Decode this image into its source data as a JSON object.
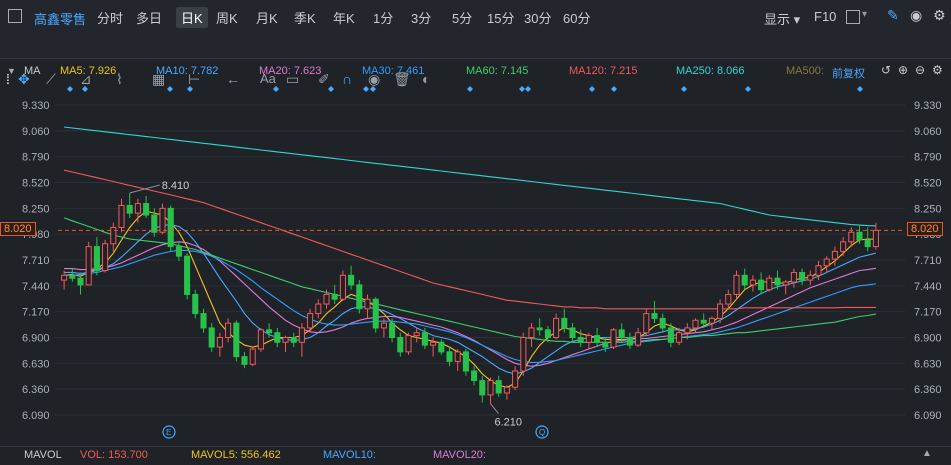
{
  "header": {
    "stock_name": "高鑫零售",
    "periods": [
      "分时",
      "多日",
      "日K",
      "周K",
      "月K",
      "季K",
      "年K",
      "1分",
      "3分",
      "5分",
      "15分",
      "30分",
      "60分"
    ],
    "active_period": "日K",
    "display_label": "显示",
    "f10_label": "F10",
    "toolbar_text_label": "Aa"
  },
  "ma_bar": {
    "title": "MA",
    "items": [
      {
        "label": "MA5: 7.926",
        "color": "#f0c419"
      },
      {
        "label": "MA10: 7.782",
        "color": "#4aa8ff"
      },
      {
        "label": "MA20: 7.623",
        "color": "#e07ad8"
      },
      {
        "label": "MA30: 7.461",
        "color": "#2f9dff"
      },
      {
        "label": "MA60: 7.145",
        "color": "#3ecf6a"
      },
      {
        "label": "MA120: 7.215",
        "color": "#f25a5a"
      },
      {
        "label": "MA250: 8.066",
        "color": "#33d6d6"
      },
      {
        "label": "MA500:",
        "color": "#8a7a3a"
      }
    ],
    "adjust_label": "前复权"
  },
  "chart_data": {
    "type": "candlestick",
    "y_ticks": [
      "9.330",
      "9.060",
      "8.790",
      "8.520",
      "8.250",
      "7.980",
      "7.710",
      "7.440",
      "7.170",
      "6.900",
      "6.630",
      "6.360",
      "6.090"
    ],
    "ylim": [
      6.0,
      9.4
    ],
    "current_price": "8.020",
    "high_annotation": "8.410",
    "low_annotation": "6.210",
    "candles": [
      [
        7.5,
        7.6,
        7.4,
        7.55
      ],
      [
        7.55,
        7.62,
        7.48,
        7.52
      ],
      [
        7.52,
        7.58,
        7.35,
        7.45
      ],
      [
        7.45,
        7.9,
        7.45,
        7.85
      ],
      [
        7.85,
        7.95,
        7.55,
        7.6
      ],
      [
        7.6,
        7.92,
        7.58,
        7.88
      ],
      [
        7.88,
        8.1,
        7.8,
        8.05
      ],
      [
        8.05,
        8.35,
        8.0,
        8.28
      ],
      [
        8.28,
        8.41,
        8.15,
        8.2
      ],
      [
        8.2,
        8.35,
        8.1,
        8.3
      ],
      [
        8.3,
        8.38,
        8.15,
        8.18
      ],
      [
        8.18,
        8.25,
        7.95,
        8.0
      ],
      [
        8.0,
        8.3,
        7.98,
        8.25
      ],
      [
        8.25,
        8.28,
        7.8,
        7.85
      ],
      [
        7.85,
        7.9,
        7.7,
        7.75
      ],
      [
        7.75,
        7.78,
        7.3,
        7.35
      ],
      [
        7.35,
        7.4,
        7.1,
        7.15
      ],
      [
        7.15,
        7.2,
        6.95,
        7.0
      ],
      [
        7.0,
        7.05,
        6.75,
        6.8
      ],
      [
        6.8,
        6.95,
        6.7,
        6.9
      ],
      [
        6.9,
        7.1,
        6.85,
        7.05
      ],
      [
        7.05,
        7.08,
        6.65,
        6.7
      ],
      [
        6.7,
        6.75,
        6.58,
        6.62
      ],
      [
        6.62,
        6.8,
        6.6,
        6.78
      ],
      [
        6.78,
        7.0,
        6.75,
        6.98
      ],
      [
        6.98,
        7.05,
        6.9,
        6.95
      ],
      [
        6.95,
        7.0,
        6.8,
        6.85
      ],
      [
        6.85,
        6.92,
        6.75,
        6.9
      ],
      [
        6.9,
        6.95,
        6.8,
        6.85
      ],
      [
        6.85,
        7.05,
        6.7,
        7.0
      ],
      [
        7.0,
        7.2,
        6.95,
        7.15
      ],
      [
        7.15,
        7.3,
        7.1,
        7.25
      ],
      [
        7.25,
        7.4,
        7.2,
        7.35
      ],
      [
        7.35,
        7.45,
        7.25,
        7.3
      ],
      [
        7.3,
        7.6,
        7.28,
        7.55
      ],
      [
        7.55,
        7.65,
        7.4,
        7.45
      ],
      [
        7.45,
        7.5,
        7.15,
        7.2
      ],
      [
        7.2,
        7.35,
        7.1,
        7.3
      ],
      [
        7.3,
        7.32,
        6.95,
        7.0
      ],
      [
        7.0,
        7.1,
        6.9,
        7.05
      ],
      [
        7.05,
        7.1,
        6.85,
        6.9
      ],
      [
        6.9,
        6.95,
        6.7,
        6.75
      ],
      [
        6.75,
        6.95,
        6.72,
        6.92
      ],
      [
        6.92,
        7.0,
        6.85,
        6.95
      ],
      [
        6.95,
        7.0,
        6.78,
        6.82
      ],
      [
        6.82,
        6.9,
        6.7,
        6.85
      ],
      [
        6.85,
        6.88,
        6.72,
        6.75
      ],
      [
        6.75,
        6.8,
        6.6,
        6.65
      ],
      [
        6.65,
        6.78,
        6.55,
        6.75
      ],
      [
        6.75,
        6.78,
        6.5,
        6.55
      ],
      [
        6.55,
        6.6,
        6.4,
        6.45
      ],
      [
        6.45,
        6.5,
        6.22,
        6.3
      ],
      [
        6.3,
        6.48,
        6.21,
        6.45
      ],
      [
        6.45,
        6.5,
        6.28,
        6.32
      ],
      [
        6.32,
        6.4,
        6.25,
        6.38
      ],
      [
        6.38,
        6.6,
        6.35,
        6.55
      ],
      [
        6.55,
        6.95,
        6.5,
        6.9
      ],
      [
        6.9,
        7.05,
        6.8,
        7.0
      ],
      [
        7.0,
        7.1,
        6.92,
        6.98
      ],
      [
        6.98,
        7.02,
        6.85,
        6.9
      ],
      [
        6.9,
        7.15,
        6.88,
        7.1
      ],
      [
        7.1,
        7.2,
        6.95,
        7.0
      ],
      [
        7.0,
        7.05,
        6.85,
        6.9
      ],
      [
        6.9,
        6.98,
        6.8,
        6.85
      ],
      [
        6.85,
        6.95,
        6.78,
        6.92
      ],
      [
        6.92,
        7.0,
        6.8,
        6.85
      ],
      [
        6.85,
        6.9,
        6.75,
        6.8
      ],
      [
        6.8,
        7.0,
        6.78,
        6.98
      ],
      [
        6.98,
        7.05,
        6.85,
        6.9
      ],
      [
        6.9,
        6.95,
        6.78,
        6.82
      ],
      [
        6.82,
        7.0,
        6.8,
        6.95
      ],
      [
        6.95,
        7.2,
        6.92,
        7.15
      ],
      [
        7.15,
        7.28,
        7.05,
        7.1
      ],
      [
        7.1,
        7.15,
        6.95,
        7.0
      ],
      [
        7.0,
        7.05,
        6.8,
        6.85
      ],
      [
        6.85,
        7.0,
        6.82,
        6.95
      ],
      [
        6.95,
        7.05,
        6.88,
        7.0
      ],
      [
        7.0,
        7.1,
        6.95,
        7.08
      ],
      [
        7.08,
        7.15,
        7.0,
        7.05
      ],
      [
        7.05,
        7.12,
        6.98,
        7.1
      ],
      [
        7.1,
        7.3,
        7.05,
        7.25
      ],
      [
        7.25,
        7.4,
        7.2,
        7.35
      ],
      [
        7.35,
        7.6,
        7.3,
        7.55
      ],
      [
        7.55,
        7.62,
        7.4,
        7.45
      ],
      [
        7.45,
        7.55,
        7.38,
        7.5
      ],
      [
        7.5,
        7.58,
        7.35,
        7.4
      ],
      [
        7.4,
        7.55,
        7.38,
        7.52
      ],
      [
        7.52,
        7.6,
        7.4,
        7.45
      ],
      [
        7.45,
        7.5,
        7.35,
        7.48
      ],
      [
        7.48,
        7.62,
        7.42,
        7.58
      ],
      [
        7.58,
        7.62,
        7.45,
        7.5
      ],
      [
        7.5,
        7.6,
        7.45,
        7.55
      ],
      [
        7.55,
        7.7,
        7.5,
        7.65
      ],
      [
        7.65,
        7.75,
        7.58,
        7.72
      ],
      [
        7.72,
        7.85,
        7.65,
        7.8
      ],
      [
        7.8,
        7.95,
        7.75,
        7.9
      ],
      [
        7.9,
        8.05,
        7.85,
        8.0
      ],
      [
        8.0,
        8.08,
        7.88,
        7.92
      ],
      [
        7.92,
        8.05,
        7.8,
        7.85
      ],
      [
        7.85,
        8.1,
        7.82,
        8.02
      ]
    ],
    "ma_lines": {
      "MA5": [
        7.55,
        7.56,
        7.54,
        7.58,
        7.62,
        7.68,
        7.78,
        7.92,
        8.05,
        8.15,
        8.22,
        8.2,
        8.18,
        8.1,
        8.0,
        7.85,
        7.65,
        7.45,
        7.25,
        7.05,
        6.95,
        6.88,
        6.82,
        6.8,
        6.82,
        6.86,
        6.9,
        6.9,
        6.9,
        6.92,
        6.98,
        7.05,
        7.15,
        7.22,
        7.3,
        7.35,
        7.32,
        7.28,
        7.22,
        7.15,
        7.05,
        6.98,
        6.92,
        6.9,
        6.88,
        6.86,
        6.84,
        6.8,
        6.75,
        6.7,
        6.62,
        6.52,
        6.45,
        6.4,
        6.38,
        6.42,
        6.55,
        6.7,
        6.82,
        6.9,
        6.96,
        7.0,
        6.98,
        6.94,
        6.92,
        6.9,
        6.88,
        6.88,
        6.88,
        6.88,
        6.9,
        6.95,
        7.02,
        7.05,
        7.02,
        6.98,
        6.96,
        6.98,
        7.02,
        7.06,
        7.12,
        7.2,
        7.3,
        7.4,
        7.45,
        7.48,
        7.48,
        7.47,
        7.47,
        7.5,
        7.52,
        7.53,
        7.58,
        7.64,
        7.7,
        7.78,
        7.86,
        7.92,
        7.93,
        7.926
      ],
      "MA10": [
        7.58,
        7.58,
        7.57,
        7.58,
        7.6,
        7.63,
        7.67,
        7.74,
        7.82,
        7.9,
        7.98,
        8.04,
        8.07,
        8.08,
        8.06,
        8.0,
        7.9,
        7.78,
        7.65,
        7.52,
        7.4,
        7.28,
        7.15,
        7.05,
        6.98,
        6.93,
        6.9,
        6.88,
        6.87,
        6.88,
        6.9,
        6.95,
        7.02,
        7.08,
        7.15,
        7.2,
        7.22,
        7.22,
        7.2,
        7.18,
        7.14,
        7.1,
        7.05,
        7.0,
        6.96,
        6.92,
        6.9,
        6.88,
        6.85,
        6.8,
        6.75,
        6.7,
        6.64,
        6.58,
        6.54,
        6.52,
        6.54,
        6.58,
        6.64,
        6.7,
        6.76,
        6.82,
        6.86,
        6.88,
        6.9,
        6.9,
        6.9,
        6.9,
        6.9,
        6.9,
        6.91,
        6.92,
        6.94,
        6.96,
        6.98,
        6.98,
        6.98,
        6.99,
        7.01,
        7.04,
        7.08,
        7.13,
        7.19,
        7.25,
        7.31,
        7.36,
        7.4,
        7.43,
        7.45,
        7.47,
        7.49,
        7.51,
        7.54,
        7.58,
        7.62,
        7.66,
        7.7,
        7.74,
        7.76,
        7.782
      ],
      "MA20": [
        7.62,
        7.62,
        7.61,
        7.61,
        7.62,
        7.63,
        7.65,
        7.68,
        7.72,
        7.76,
        7.8,
        7.84,
        7.87,
        7.89,
        7.9,
        7.89,
        7.86,
        7.82,
        7.76,
        7.7,
        7.62,
        7.54,
        7.46,
        7.38,
        7.3,
        7.22,
        7.15,
        7.08,
        7.03,
        6.99,
        6.96,
        6.95,
        6.96,
        6.98,
        7.01,
        7.05,
        7.08,
        7.1,
        7.11,
        7.12,
        7.12,
        7.11,
        7.09,
        7.07,
        7.05,
        7.03,
        7.01,
        6.98,
        6.95,
        6.91,
        6.87,
        6.82,
        6.77,
        6.72,
        6.67,
        6.63,
        6.61,
        6.6,
        6.61,
        6.63,
        6.66,
        6.69,
        6.72,
        6.75,
        6.78,
        6.81,
        6.84,
        6.86,
        6.87,
        6.88,
        6.89,
        6.89,
        6.9,
        6.91,
        6.92,
        6.93,
        6.94,
        6.95,
        6.96,
        6.98,
        7.0,
        7.03,
        7.06,
        7.1,
        7.14,
        7.18,
        7.22,
        7.26,
        7.3,
        7.34,
        7.38,
        7.42,
        7.45,
        7.48,
        7.51,
        7.54,
        7.57,
        7.6,
        7.61,
        7.623
      ],
      "MA30": [
        7.55,
        7.55,
        7.56,
        7.57,
        7.58,
        7.6,
        7.62,
        7.64,
        7.67,
        7.7,
        7.73,
        7.76,
        7.78,
        7.8,
        7.81,
        7.81,
        7.8,
        7.78,
        7.75,
        7.71,
        7.66,
        7.61,
        7.55,
        7.49,
        7.42,
        7.36,
        7.3,
        7.24,
        7.18,
        7.13,
        7.09,
        7.06,
        7.04,
        7.03,
        7.03,
        7.04,
        7.05,
        7.06,
        7.07,
        7.07,
        7.07,
        7.06,
        7.05,
        7.04,
        7.02,
        7.0,
        6.98,
        6.96,
        6.93,
        6.9,
        6.86,
        6.82,
        6.78,
        6.74,
        6.7,
        6.67,
        6.65,
        6.64,
        6.64,
        6.65,
        6.66,
        6.68,
        6.7,
        6.72,
        6.74,
        6.76,
        6.78,
        6.8,
        6.82,
        6.84,
        6.85,
        6.86,
        6.87,
        6.88,
        6.89,
        6.9,
        6.91,
        6.92,
        6.93,
        6.94,
        6.96,
        6.98,
        7.0,
        7.03,
        7.06,
        7.09,
        7.12,
        7.15,
        7.18,
        7.21,
        7.24,
        7.27,
        7.3,
        7.33,
        7.36,
        7.39,
        7.42,
        7.44,
        7.45,
        7.461
      ],
      "MA60": [
        8.15,
        8.12,
        8.09,
        8.06,
        8.03,
        8.0,
        7.97,
        7.95,
        7.93,
        7.92,
        7.91,
        7.9,
        7.89,
        7.88,
        7.86,
        7.84,
        7.82,
        7.79,
        7.76,
        7.73,
        7.7,
        7.67,
        7.64,
        7.61,
        7.58,
        7.55,
        7.52,
        7.49,
        7.46,
        7.43,
        7.41,
        7.39,
        7.37,
        7.35,
        7.33,
        7.31,
        7.29,
        7.27,
        7.25,
        7.23,
        7.21,
        7.19,
        7.17,
        7.15,
        7.13,
        7.11,
        7.09,
        7.07,
        7.05,
        7.03,
        7.01,
        6.99,
        6.97,
        6.95,
        6.93,
        6.91,
        6.9,
        6.89,
        6.88,
        6.87,
        6.86,
        6.86,
        6.85,
        6.85,
        6.85,
        6.85,
        6.85,
        6.85,
        6.85,
        6.86,
        6.86,
        6.87,
        6.88,
        6.88,
        6.89,
        6.9,
        6.9,
        6.91,
        6.92,
        6.92,
        6.93,
        6.94,
        6.95,
        6.95,
        6.96,
        6.97,
        6.98,
        6.99,
        7.0,
        7.01,
        7.02,
        7.03,
        7.04,
        7.05,
        7.06,
        7.08,
        7.1,
        7.12,
        7.13,
        7.145
      ],
      "MA120": [
        8.65,
        8.63,
        8.61,
        8.59,
        8.57,
        8.55,
        8.53,
        8.51,
        8.49,
        8.47,
        8.45,
        8.43,
        8.41,
        8.39,
        8.37,
        8.35,
        8.33,
        8.31,
        8.28,
        8.25,
        8.22,
        8.19,
        8.16,
        8.13,
        8.1,
        8.07,
        8.04,
        8.01,
        7.98,
        7.95,
        7.92,
        7.89,
        7.86,
        7.83,
        7.8,
        7.77,
        7.74,
        7.71,
        7.68,
        7.65,
        7.62,
        7.59,
        7.56,
        7.53,
        7.5,
        7.47,
        7.45,
        7.43,
        7.41,
        7.39,
        7.37,
        7.35,
        7.33,
        7.31,
        7.29,
        7.28,
        7.27,
        7.26,
        7.25,
        7.24,
        7.23,
        7.22,
        7.22,
        7.21,
        7.21,
        7.21,
        7.2,
        7.2,
        7.2,
        7.2,
        7.2,
        7.2,
        7.2,
        7.2,
        7.2,
        7.2,
        7.2,
        7.2,
        7.2,
        7.2,
        7.2,
        7.2,
        7.2,
        7.21,
        7.21,
        7.21,
        7.21,
        7.21,
        7.21,
        7.21,
        7.21,
        7.21,
        7.21,
        7.21,
        7.21,
        7.215,
        7.215,
        7.215,
        7.215,
        7.215
      ],
      "MA250": [
        9.1,
        9.09,
        9.08,
        9.07,
        9.06,
        9.05,
        9.04,
        9.03,
        9.02,
        9.01,
        9.0,
        8.99,
        8.98,
        8.97,
        8.96,
        8.95,
        8.94,
        8.93,
        8.92,
        8.91,
        8.9,
        8.89,
        8.88,
        8.87,
        8.86,
        8.85,
        8.84,
        8.83,
        8.82,
        8.81,
        8.8,
        8.79,
        8.78,
        8.77,
        8.76,
        8.75,
        8.74,
        8.73,
        8.72,
        8.71,
        8.7,
        8.69,
        8.68,
        8.67,
        8.66,
        8.65,
        8.64,
        8.63,
        8.62,
        8.61,
        8.6,
        8.59,
        8.58,
        8.57,
        8.56,
        8.55,
        8.54,
        8.53,
        8.52,
        8.51,
        8.5,
        8.49,
        8.48,
        8.47,
        8.46,
        8.45,
        8.44,
        8.43,
        8.42,
        8.41,
        8.4,
        8.39,
        8.38,
        8.37,
        8.36,
        8.35,
        8.34,
        8.33,
        8.32,
        8.31,
        8.3,
        8.28,
        8.26,
        8.24,
        8.22,
        8.2,
        8.18,
        8.17,
        8.16,
        8.15,
        8.14,
        8.13,
        8.12,
        8.11,
        8.1,
        8.09,
        8.08,
        8.075,
        8.07,
        8.066
      ]
    }
  },
  "volume_bar": {
    "title": "MAVOL",
    "vol": "VOL: 153.700",
    "mavol5": "MAVOL5: 556.462",
    "mavol10": "MAVOL10:",
    "mavol20": "MAVOL20:"
  }
}
